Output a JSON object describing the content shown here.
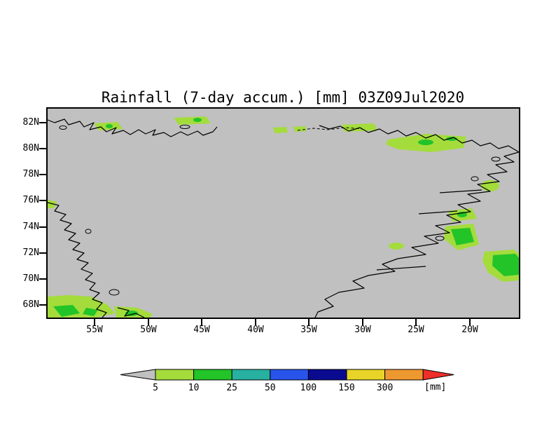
{
  "title": "Rainfall (7-day accum.) [mm] 03Z09Jul2020",
  "axes": {
    "lat_labels": [
      "82N",
      "80N",
      "78N",
      "76N",
      "74N",
      "72N",
      "70N",
      "68N"
    ],
    "lon_labels": [
      "55W",
      "50W",
      "45W",
      "40W",
      "35W",
      "30W",
      "25W",
      "20W"
    ]
  },
  "colorbar": {
    "unit_label": "[mm]",
    "thresholds": [
      "5",
      "10",
      "25",
      "50",
      "100",
      "150",
      "300"
    ],
    "colors": [
      "#c0c0c0",
      "#a4dc3c",
      "#22c428",
      "#28b0a0",
      "#2854ec",
      "#0a0a90",
      "#e8d428",
      "#ee9830",
      "#ee2e28"
    ]
  },
  "colors": {
    "background": "#ffffff",
    "map_gray": "#c0c0c0",
    "frame": "#000000"
  },
  "chart_data": {
    "type": "heatmap",
    "title": "Rainfall (7-day accum.) [mm] 03Z09Jul2020",
    "variable": "rainfall 7-day accumulation",
    "units": "mm",
    "valid_time": "03Z09Jul2020",
    "projection": "lat-lon map of Greenland region",
    "lat_range": [
      67.0,
      83.1
    ],
    "lon_range_w": [
      59.4,
      15.4
    ],
    "lat_ticks": [
      "82N",
      "80N",
      "78N",
      "76N",
      "74N",
      "72N",
      "70N",
      "68N"
    ],
    "lon_ticks": [
      "55W",
      "50W",
      "45W",
      "40W",
      "35W",
      "30W",
      "25W",
      "20W"
    ],
    "levels_mm": [
      5,
      10,
      25,
      50,
      100,
      150,
      300
    ],
    "level_colors": {
      "lt5": "#c0c0c0",
      "5-10": "#a4dc3c",
      "10-25": "#22c428",
      "25-50": "#28b0a0",
      "50-100": "#2854ec",
      "100-150": "#0a0a90",
      "150-300": "#e8d428",
      "gt300": "#ee9830",
      "extreme_arrow": "#ee2e28"
    },
    "background_field": "below 5 mm (gray) over most of the domain",
    "rain_areas": [
      {
        "region": "southwest Greenland coast",
        "lat": "67-68.5N",
        "lon": "59-49W",
        "accum_mm": "5-25"
      },
      {
        "region": "north coast (west part)",
        "lat": "81.5-82.5N",
        "lon": "55-43W",
        "accum_mm": "5-10"
      },
      {
        "region": "north-central coast",
        "lat": "81.5-82N",
        "lon": "38-33W",
        "accum_mm": "5-10"
      },
      {
        "region": "northeast coast",
        "lat": "80-81.5N",
        "lon": "27-20W",
        "accum_mm": "5-25"
      },
      {
        "region": "east coast",
        "lat": "76-77N",
        "lon": "18-16W",
        "accum_mm": "5-10"
      },
      {
        "region": "east coast fjords",
        "lat": "73-75N",
        "lon": "22-18W",
        "accum_mm": "5-25"
      },
      {
        "region": "Greenland Sea, right edge",
        "lat": "69.5-71.5N",
        "lon": "17-15.5W",
        "accum_mm": "10-25"
      },
      {
        "region": "west coast",
        "lat": "76N",
        "lon": "59W",
        "accum_mm": "5-10"
      }
    ],
    "legend_position": "bottom, horizontal color bar with low/high arrow ends"
  }
}
